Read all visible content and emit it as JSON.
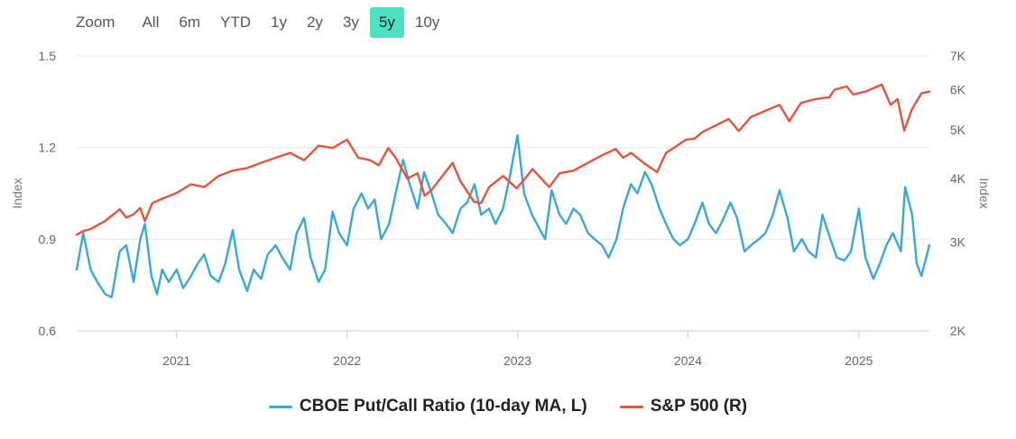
{
  "toolbar": {
    "zoom_label": "Zoom",
    "ranges": [
      "All",
      "6m",
      "YTD",
      "1y",
      "2y",
      "3y",
      "5y",
      "10y"
    ],
    "selected": "5y",
    "accent_color": "#4de0c1"
  },
  "chart_data": {
    "type": "line",
    "title": "",
    "x_range": [
      "2020-06-01",
      "2025-06-01"
    ],
    "x_ticks": [
      "2021",
      "2022",
      "2023",
      "2024",
      "2025"
    ],
    "grid": "horizontal",
    "legend_position": "bottom-center",
    "y_left": {
      "label": "Index",
      "range": [
        0.6,
        1.5
      ],
      "ticks": [
        "0.6",
        "0.9",
        "1.2",
        "1.5"
      ]
    },
    "y_right": {
      "label": "Index",
      "scale": "log",
      "range": [
        2000,
        7000
      ],
      "ticks": [
        "2K",
        "3K",
        "4K",
        "5K",
        "6K",
        "7K"
      ]
    },
    "series": [
      {
        "name": "CBOE Put/Call Ratio (10-day MA, L)",
        "axis": "left",
        "color": "#3aa8d4",
        "points": [
          [
            "2020-06-01",
            0.8
          ],
          [
            "2020-06-15",
            0.92
          ],
          [
            "2020-07-01",
            0.8
          ],
          [
            "2020-07-15",
            0.76
          ],
          [
            "2020-08-01",
            0.72
          ],
          [
            "2020-08-15",
            0.71
          ],
          [
            "2020-09-01",
            0.86
          ],
          [
            "2020-09-15",
            0.88
          ],
          [
            "2020-10-01",
            0.76
          ],
          [
            "2020-10-15",
            0.9
          ],
          [
            "2020-10-25",
            0.95
          ],
          [
            "2020-11-08",
            0.78
          ],
          [
            "2020-11-20",
            0.72
          ],
          [
            "2020-12-01",
            0.8
          ],
          [
            "2020-12-15",
            0.76
          ],
          [
            "2021-01-01",
            0.8
          ],
          [
            "2021-01-15",
            0.74
          ],
          [
            "2021-02-01",
            0.78
          ],
          [
            "2021-02-15",
            0.82
          ],
          [
            "2021-03-01",
            0.85
          ],
          [
            "2021-03-15",
            0.78
          ],
          [
            "2021-04-01",
            0.76
          ],
          [
            "2021-04-15",
            0.82
          ],
          [
            "2021-05-01",
            0.93
          ],
          [
            "2021-05-15",
            0.8
          ],
          [
            "2021-06-01",
            0.73
          ],
          [
            "2021-06-15",
            0.8
          ],
          [
            "2021-07-01",
            0.77
          ],
          [
            "2021-07-15",
            0.85
          ],
          [
            "2021-08-01",
            0.88
          ],
          [
            "2021-08-15",
            0.84
          ],
          [
            "2021-09-01",
            0.8
          ],
          [
            "2021-09-15",
            0.92
          ],
          [
            "2021-10-01",
            0.97
          ],
          [
            "2021-10-15",
            0.84
          ],
          [
            "2021-11-01",
            0.76
          ],
          [
            "2021-11-15",
            0.8
          ],
          [
            "2021-12-01",
            0.99
          ],
          [
            "2021-12-15",
            0.92
          ],
          [
            "2022-01-01",
            0.88
          ],
          [
            "2022-01-15",
            1.0
          ],
          [
            "2022-02-01",
            1.05
          ],
          [
            "2022-02-15",
            1.0
          ],
          [
            "2022-03-01",
            1.03
          ],
          [
            "2022-03-15",
            0.9
          ],
          [
            "2022-04-01",
            0.95
          ],
          [
            "2022-04-15",
            1.05
          ],
          [
            "2022-05-01",
            1.16
          ],
          [
            "2022-05-15",
            1.08
          ],
          [
            "2022-06-01",
            1.0
          ],
          [
            "2022-06-15",
            1.12
          ],
          [
            "2022-07-01",
            1.05
          ],
          [
            "2022-07-15",
            0.98
          ],
          [
            "2022-08-01",
            0.95
          ],
          [
            "2022-08-15",
            0.92
          ],
          [
            "2022-09-01",
            1.0
          ],
          [
            "2022-09-15",
            1.02
          ],
          [
            "2022-10-01",
            1.08
          ],
          [
            "2022-10-15",
            0.98
          ],
          [
            "2022-11-01",
            1.0
          ],
          [
            "2022-11-15",
            0.95
          ],
          [
            "2022-12-01",
            1.0
          ],
          [
            "2022-12-15",
            1.1
          ],
          [
            "2023-01-01",
            1.24
          ],
          [
            "2023-01-15",
            1.05
          ],
          [
            "2023-02-01",
            0.98
          ],
          [
            "2023-02-15",
            0.94
          ],
          [
            "2023-03-01",
            0.9
          ],
          [
            "2023-03-15",
            1.06
          ],
          [
            "2023-04-01",
            0.98
          ],
          [
            "2023-04-15",
            0.95
          ],
          [
            "2023-05-01",
            1.0
          ],
          [
            "2023-05-15",
            0.98
          ],
          [
            "2023-06-01",
            0.92
          ],
          [
            "2023-06-15",
            0.9
          ],
          [
            "2023-07-01",
            0.88
          ],
          [
            "2023-07-15",
            0.84
          ],
          [
            "2023-08-01",
            0.9
          ],
          [
            "2023-08-15",
            1.0
          ],
          [
            "2023-09-01",
            1.08
          ],
          [
            "2023-09-15",
            1.05
          ],
          [
            "2023-10-01",
            1.12
          ],
          [
            "2023-10-15",
            1.08
          ],
          [
            "2023-11-01",
            1.0
          ],
          [
            "2023-11-15",
            0.95
          ],
          [
            "2023-12-01",
            0.9
          ],
          [
            "2023-12-15",
            0.88
          ],
          [
            "2024-01-01",
            0.9
          ],
          [
            "2024-01-15",
            0.95
          ],
          [
            "2024-02-01",
            1.02
          ],
          [
            "2024-02-15",
            0.95
          ],
          [
            "2024-03-01",
            0.92
          ],
          [
            "2024-03-15",
            0.96
          ],
          [
            "2024-04-01",
            1.02
          ],
          [
            "2024-04-15",
            0.97
          ],
          [
            "2024-05-01",
            0.86
          ],
          [
            "2024-05-15",
            0.88
          ],
          [
            "2024-06-01",
            0.9
          ],
          [
            "2024-06-15",
            0.92
          ],
          [
            "2024-07-01",
            0.98
          ],
          [
            "2024-07-15",
            1.06
          ],
          [
            "2024-08-01",
            0.97
          ],
          [
            "2024-08-15",
            0.86
          ],
          [
            "2024-09-01",
            0.9
          ],
          [
            "2024-09-15",
            0.86
          ],
          [
            "2024-10-01",
            0.84
          ],
          [
            "2024-10-15",
            0.98
          ],
          [
            "2024-11-01",
            0.9
          ],
          [
            "2024-11-15",
            0.84
          ],
          [
            "2024-12-01",
            0.83
          ],
          [
            "2024-12-15",
            0.86
          ],
          [
            "2025-01-01",
            1.0
          ],
          [
            "2025-01-15",
            0.84
          ],
          [
            "2025-02-01",
            0.77
          ],
          [
            "2025-02-15",
            0.82
          ],
          [
            "2025-03-01",
            0.88
          ],
          [
            "2025-03-15",
            0.92
          ],
          [
            "2025-04-01",
            0.86
          ],
          [
            "2025-04-10",
            1.07
          ],
          [
            "2025-04-25",
            0.98
          ],
          [
            "2025-05-05",
            0.82
          ],
          [
            "2025-05-15",
            0.78
          ],
          [
            "2025-06-01",
            0.88
          ]
        ]
      },
      {
        "name": "S&P 500 (R)",
        "axis": "right",
        "color": "#e5533b",
        "points": [
          [
            "2020-06-01",
            3100
          ],
          [
            "2020-06-15",
            3150
          ],
          [
            "2020-07-01",
            3180
          ],
          [
            "2020-08-01",
            3300
          ],
          [
            "2020-09-01",
            3480
          ],
          [
            "2020-09-15",
            3350
          ],
          [
            "2020-10-01",
            3400
          ],
          [
            "2020-10-15",
            3500
          ],
          [
            "2020-10-25",
            3300
          ],
          [
            "2020-11-10",
            3580
          ],
          [
            "2020-12-01",
            3650
          ],
          [
            "2021-01-01",
            3750
          ],
          [
            "2021-02-01",
            3900
          ],
          [
            "2021-03-01",
            3850
          ],
          [
            "2021-04-01",
            4050
          ],
          [
            "2021-05-01",
            4150
          ],
          [
            "2021-06-01",
            4200
          ],
          [
            "2021-07-01",
            4300
          ],
          [
            "2021-08-01",
            4400
          ],
          [
            "2021-09-01",
            4500
          ],
          [
            "2021-10-01",
            4350
          ],
          [
            "2021-11-01",
            4650
          ],
          [
            "2021-12-01",
            4600
          ],
          [
            "2022-01-01",
            4780
          ],
          [
            "2022-01-25",
            4400
          ],
          [
            "2022-02-20",
            4350
          ],
          [
            "2022-03-10",
            4250
          ],
          [
            "2022-03-30",
            4600
          ],
          [
            "2022-04-15",
            4400
          ],
          [
            "2022-05-10",
            4000
          ],
          [
            "2022-06-01",
            4100
          ],
          [
            "2022-06-16",
            3700
          ],
          [
            "2022-07-01",
            3800
          ],
          [
            "2022-08-15",
            4300
          ],
          [
            "2022-09-01",
            3950
          ],
          [
            "2022-09-30",
            3600
          ],
          [
            "2022-10-15",
            3580
          ],
          [
            "2022-11-01",
            3850
          ],
          [
            "2022-12-01",
            4050
          ],
          [
            "2022-12-30",
            3830
          ],
          [
            "2023-01-15",
            3980
          ],
          [
            "2023-02-02",
            4180
          ],
          [
            "2023-03-10",
            3850
          ],
          [
            "2023-04-01",
            4100
          ],
          [
            "2023-05-01",
            4150
          ],
          [
            "2023-06-01",
            4300
          ],
          [
            "2023-07-01",
            4450
          ],
          [
            "2023-07-30",
            4580
          ],
          [
            "2023-08-15",
            4400
          ],
          [
            "2023-09-01",
            4500
          ],
          [
            "2023-10-01",
            4280
          ],
          [
            "2023-10-27",
            4120
          ],
          [
            "2023-11-15",
            4500
          ],
          [
            "2023-12-01",
            4600
          ],
          [
            "2023-12-28",
            4780
          ],
          [
            "2024-01-15",
            4800
          ],
          [
            "2024-02-01",
            4950
          ],
          [
            "2024-03-01",
            5100
          ],
          [
            "2024-03-28",
            5250
          ],
          [
            "2024-04-19",
            4970
          ],
          [
            "2024-05-15",
            5300
          ],
          [
            "2024-06-15",
            5450
          ],
          [
            "2024-07-15",
            5600
          ],
          [
            "2024-08-05",
            5200
          ],
          [
            "2024-08-30",
            5650
          ],
          [
            "2024-09-30",
            5750
          ],
          [
            "2024-10-30",
            5800
          ],
          [
            "2024-11-10",
            6000
          ],
          [
            "2024-12-06",
            6090
          ],
          [
            "2024-12-20",
            5870
          ],
          [
            "2025-01-15",
            5950
          ],
          [
            "2025-02-19",
            6140
          ],
          [
            "2025-03-10",
            5600
          ],
          [
            "2025-03-25",
            5750
          ],
          [
            "2025-04-08",
            4980
          ],
          [
            "2025-04-25",
            5500
          ],
          [
            "2025-05-15",
            5900
          ],
          [
            "2025-06-01",
            5950
          ]
        ]
      }
    ]
  }
}
